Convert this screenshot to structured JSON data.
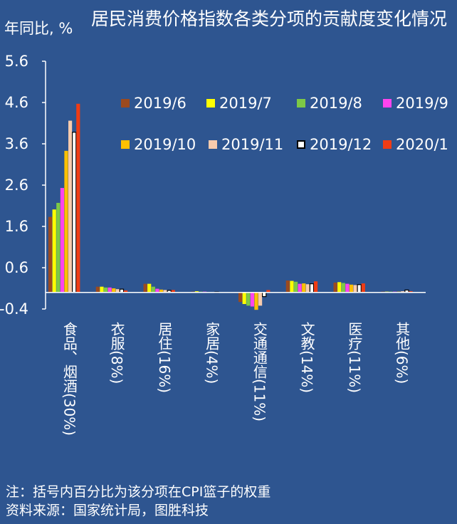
{
  "chart_data": {
    "type": "bar",
    "title": "居民消费价格指数各类分项的贡献度变化情况",
    "ylabel": "年同比, %",
    "ylim": [
      -0.4,
      5.6
    ],
    "yticks": [
      -0.4,
      0.6,
      1.6,
      2.6,
      3.6,
      4.6,
      5.6
    ],
    "ytick_labels": [
      "-0.4",
      "0.6",
      "1.6",
      "2.6",
      "3.6",
      "4.6",
      "5.6"
    ],
    "categories": [
      "食品、烟酒(30%)",
      "衣服(8%)",
      "居住(16%)",
      "家居(4%)",
      "交通通信(11%)",
      "文教(14%)",
      "医疗(11%)",
      "其他(6%)"
    ],
    "legend_position": "top-right",
    "series": [
      {
        "name": "2019/6",
        "color": "#9b4a1f",
        "values": [
          1.83,
          0.14,
          0.21,
          0.02,
          -0.23,
          0.29,
          0.24,
          0.02
        ]
      },
      {
        "name": "2019/7",
        "color": "#ffff00",
        "values": [
          2.01,
          0.14,
          0.21,
          0.03,
          -0.28,
          0.28,
          0.25,
          0.02
        ]
      },
      {
        "name": "2019/8",
        "color": "#7dc946",
        "values": [
          2.17,
          0.12,
          0.14,
          0.02,
          -0.32,
          0.26,
          0.23,
          0.02
        ]
      },
      {
        "name": "2019/9",
        "color": "#ff44ee",
        "values": [
          2.53,
          0.12,
          0.09,
          0.02,
          -0.34,
          0.21,
          0.21,
          0.02
        ]
      },
      {
        "name": "2019/10",
        "color": "#ffc000",
        "values": [
          3.43,
          0.1,
          0.07,
          0.01,
          -0.42,
          0.22,
          0.19,
          0.02
        ]
      },
      {
        "name": "2019/11",
        "color": "#f8cbad",
        "values": [
          4.16,
          0.08,
          0.06,
          0.01,
          -0.32,
          0.2,
          0.18,
          0.03
        ]
      },
      {
        "name": "2019/12",
        "color": "#ffffff",
        "values": [
          3.88,
          0.08,
          0.05,
          0.01,
          -0.1,
          0.21,
          0.19,
          0.06
        ]
      },
      {
        "name": "2020/1",
        "color": "#f03c14",
        "values": [
          4.57,
          0.05,
          0.06,
          0.01,
          0.06,
          0.27,
          0.22,
          0.03
        ]
      }
    ]
  },
  "notes": {
    "note": "注：括号内百分比为该分项在CPI篮子的权重",
    "source": "资料来源：国家统计局，图胜科技"
  }
}
